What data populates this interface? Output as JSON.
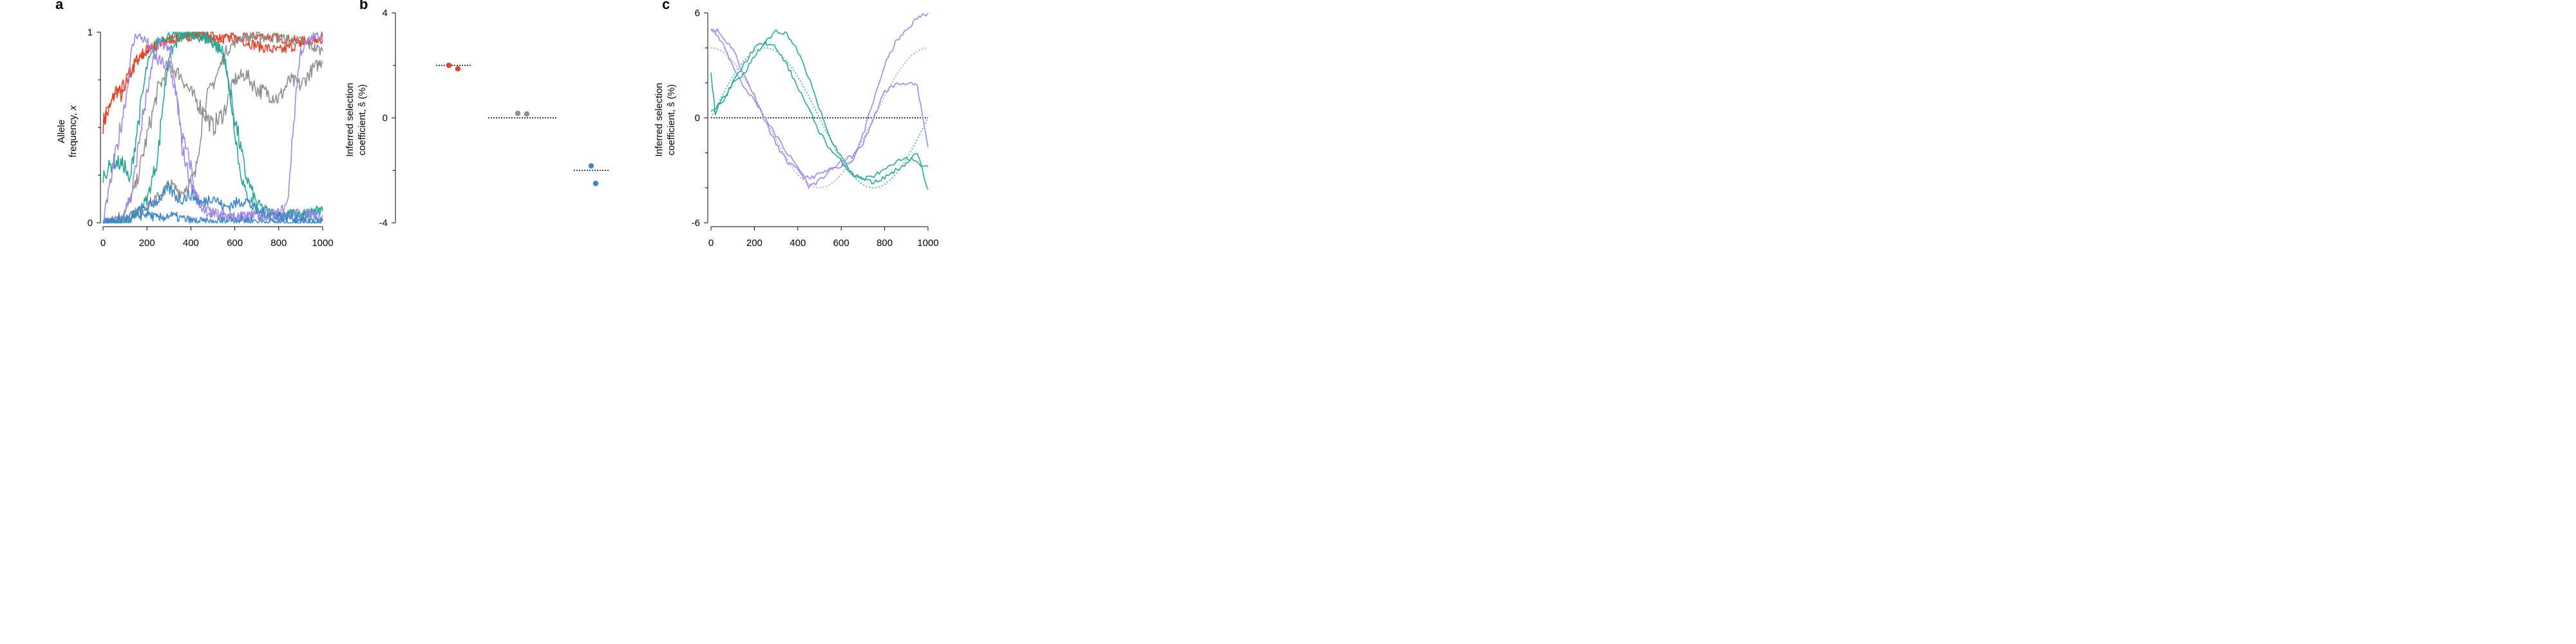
{
  "colors": {
    "red": "#e0442a",
    "gray": "#8f8f8f",
    "teal": "#2aa598",
    "purple": "#a088e6",
    "blue": "#3f86c6",
    "dotted": "#000000"
  },
  "chart_data": [
    {
      "panel": "a",
      "type": "line",
      "title": "",
      "ylabel_lines": [
        "Allele",
        "frequency, x"
      ],
      "xlim": [
        0,
        1000
      ],
      "ylim": [
        0,
        1
      ],
      "x_ticks": [
        0,
        200,
        400,
        600,
        800,
        1000
      ],
      "y_tick_labels": [
        {
          "value": 0,
          "label": "0"
        },
        {
          "value": 1,
          "label": "1"
        }
      ],
      "y_minor_ticks": [
        0.25,
        0.5,
        0.75
      ],
      "series": [
        {
          "color": "red",
          "x": [
            0,
            30,
            60,
            90,
            120,
            150,
            200,
            250,
            300,
            350,
            400,
            450,
            500,
            600,
            700,
            800,
            900,
            1000
          ],
          "y": [
            0.52,
            0.6,
            0.7,
            0.66,
            0.77,
            0.85,
            0.91,
            0.94,
            0.96,
            0.97,
            0.98,
            0.98,
            0.97,
            0.96,
            0.98,
            0.97,
            0.95,
            0.98
          ]
        },
        {
          "color": "red",
          "x": [
            0,
            40,
            80,
            120,
            160,
            200,
            250,
            300,
            400,
            500,
            600,
            700,
            800,
            900,
            1000
          ],
          "y": [
            0.5,
            0.65,
            0.68,
            0.78,
            0.85,
            0.9,
            0.94,
            0.96,
            0.99,
            0.98,
            0.97,
            0.93,
            0.9,
            0.94,
            0.96
          ]
        },
        {
          "color": "gray",
          "x": [
            0,
            100,
            150,
            200,
            250,
            300,
            350,
            400,
            450,
            500,
            550,
            600,
            650,
            700,
            750,
            800,
            850,
            900,
            950,
            1000
          ],
          "y": [
            0.0,
            0.05,
            0.2,
            0.45,
            0.7,
            0.82,
            0.78,
            0.68,
            0.6,
            0.5,
            0.58,
            0.75,
            0.78,
            0.7,
            0.68,
            0.65,
            0.75,
            0.72,
            0.8,
            0.85
          ]
        },
        {
          "color": "gray",
          "x": [
            0,
            60,
            120,
            180,
            240,
            300,
            360,
            420,
            460,
            520,
            560,
            620,
            700,
            800,
            900,
            1000
          ],
          "y": [
            0.0,
            0.0,
            0.03,
            0.08,
            0.12,
            0.2,
            0.16,
            0.25,
            0.62,
            0.78,
            0.9,
            0.97,
            0.98,
            0.97,
            0.95,
            0.9
          ]
        },
        {
          "color": "teal",
          "x": [
            0,
            50,
            100,
            120,
            150,
            200,
            250,
            300,
            350,
            400,
            450,
            500,
            550,
            600,
            650,
            700,
            750,
            800,
            850,
            900,
            950,
            1000
          ],
          "y": [
            0.25,
            0.32,
            0.3,
            0.2,
            0.45,
            0.82,
            0.96,
            0.98,
            0.99,
            0.98,
            0.97,
            0.94,
            0.88,
            0.55,
            0.25,
            0.1,
            0.06,
            0.04,
            0.05,
            0.04,
            0.05,
            0.06
          ]
        },
        {
          "color": "teal",
          "x": [
            0,
            100,
            150,
            200,
            250,
            270,
            300,
            350,
            400,
            450,
            500,
            550,
            600,
            620,
            650,
            700,
            750,
            800,
            900,
            1000
          ],
          "y": [
            0.0,
            0.0,
            0.05,
            0.12,
            0.35,
            0.6,
            0.88,
            0.97,
            0.99,
            0.98,
            0.96,
            0.9,
            0.5,
            0.3,
            0.15,
            0.08,
            0.04,
            0.03,
            0.05,
            0.07
          ]
        },
        {
          "color": "purple",
          "x": [
            0,
            40,
            80,
            110,
            130,
            150,
            200,
            250,
            300,
            330,
            360,
            400,
            420,
            450,
            500,
            600,
            700,
            800,
            840,
            860,
            880,
            900,
            950,
            1000
          ],
          "y": [
            0.0,
            0.25,
            0.5,
            0.7,
            0.9,
            0.99,
            0.95,
            0.85,
            0.82,
            0.7,
            0.45,
            0.3,
            0.15,
            0.08,
            0.05,
            0.03,
            0.04,
            0.05,
            0.1,
            0.4,
            0.7,
            0.9,
            0.97,
            0.99
          ]
        },
        {
          "color": "purple",
          "x": [
            0,
            80,
            130,
            180,
            230,
            260,
            300,
            330,
            360,
            400,
            450,
            500,
            600,
            700,
            800,
            900,
            1000
          ],
          "y": [
            0.0,
            0.02,
            0.15,
            0.55,
            0.85,
            0.95,
            0.92,
            0.7,
            0.4,
            0.2,
            0.08,
            0.04,
            0.03,
            0.04,
            0.03,
            0.05,
            0.04
          ]
        },
        {
          "color": "blue",
          "x": [
            0,
            100,
            200,
            250,
            300,
            350,
            400,
            450,
            500,
            550,
            600,
            650,
            700,
            800,
            900,
            1000
          ],
          "y": [
            0.0,
            0.02,
            0.08,
            0.12,
            0.18,
            0.12,
            0.15,
            0.1,
            0.14,
            0.08,
            0.1,
            0.12,
            0.06,
            0.04,
            0.02,
            0.01
          ]
        },
        {
          "color": "blue",
          "x": [
            0,
            100,
            200,
            250,
            300,
            400,
            500,
            600,
            700,
            800,
            900,
            1000
          ],
          "y": [
            0.0,
            0.01,
            0.05,
            0.02,
            0.04,
            0.01,
            0.0,
            0.02,
            0.01,
            0.0,
            0.0,
            0.01
          ]
        }
      ]
    },
    {
      "panel": "b",
      "type": "scatter",
      "title": "",
      "ylabel_lines": [
        "Inferred selection",
        "coefficient, ŝ (%)"
      ],
      "ylim": [
        -4,
        4
      ],
      "y_tick_labels": [
        {
          "value": 4,
          "label": "4"
        },
        {
          "value": 0,
          "label": "0"
        },
        {
          "value": -4,
          "label": "-4"
        }
      ],
      "y_minor_ticks": [
        2,
        -2
      ],
      "true_values": [
        {
          "group": 1,
          "value": 2,
          "color": "dotted"
        },
        {
          "group": 2,
          "value": 0,
          "color": "dotted"
        },
        {
          "group": 3,
          "value": -2,
          "color": "dotted"
        }
      ],
      "points": [
        {
          "group": 1,
          "offset": -1,
          "value": 2.0,
          "color": "red"
        },
        {
          "group": 1,
          "offset": 1,
          "value": 1.87,
          "color": "red"
        },
        {
          "group": 2,
          "offset": -1,
          "value": 0.17,
          "color": "gray"
        },
        {
          "group": 2,
          "offset": 1,
          "value": 0.15,
          "color": "gray"
        },
        {
          "group": 3,
          "offset": 0,
          "value": -1.83,
          "color": "blue"
        },
        {
          "group": 3,
          "offset": 1,
          "value": -2.5,
          "color": "blue"
        }
      ]
    },
    {
      "panel": "c",
      "type": "line",
      "title": "",
      "ylabel_lines": [
        "Inferred selection",
        "coefficient, ŝ (%)"
      ],
      "xlim": [
        0,
        1000
      ],
      "ylim": [
        -6,
        6
      ],
      "x_ticks": [
        0,
        200,
        400,
        600,
        800,
        1000
      ],
      "y_tick_labels": [
        {
          "value": 6,
          "label": "6"
        },
        {
          "value": 0,
          "label": "0"
        },
        {
          "value": -6,
          "label": "-6"
        }
      ],
      "y_minor_ticks": [
        4,
        2,
        -2,
        -4
      ],
      "zero_line": 0,
      "true_curves": [
        {
          "color": "purple",
          "amplitude": 4,
          "phase_shift": 0
        },
        {
          "color": "teal",
          "amplitude": 4,
          "phase_shift": 250
        }
      ],
      "series": [
        {
          "color": "purple",
          "x": [
            0,
            30,
            60,
            100,
            150,
            200,
            250,
            300,
            350,
            400,
            450,
            500,
            550,
            600,
            650,
            700,
            750,
            800,
            850,
            900,
            950,
            1000
          ],
          "y": [
            5.1,
            5.0,
            4.5,
            4.0,
            2.5,
            1.3,
            -0.2,
            -1.5,
            -2.5,
            -3.0,
            -3.5,
            -3.2,
            -3.0,
            -2.7,
            -2.5,
            -1.0,
            1.0,
            3.0,
            4.3,
            5.0,
            5.7,
            6.0
          ]
        },
        {
          "color": "purple",
          "x": [
            0,
            50,
            100,
            150,
            200,
            250,
            300,
            350,
            400,
            450,
            500,
            550,
            600,
            650,
            700,
            750,
            800,
            850,
            900,
            950,
            1000
          ],
          "y": [
            5.2,
            4.3,
            3.0,
            1.8,
            1.0,
            0.0,
            -1.0,
            -2.0,
            -2.8,
            -3.9,
            -3.6,
            -3.0,
            -2.5,
            -2.2,
            -1.5,
            0.0,
            1.5,
            1.9,
            2.0,
            1.8,
            -1.7
          ]
        },
        {
          "color": "teal",
          "x": [
            0,
            20,
            50,
            100,
            150,
            200,
            250,
            300,
            350,
            400,
            450,
            500,
            550,
            600,
            650,
            700,
            750,
            800,
            850,
            900,
            950,
            1000
          ],
          "y": [
            2.5,
            0.3,
            1.0,
            2.0,
            2.5,
            3.5,
            4.3,
            5.0,
            4.8,
            3.8,
            2.3,
            0.5,
            -1.2,
            -2.2,
            -3.2,
            -3.5,
            -3.7,
            -3.4,
            -3.0,
            -2.6,
            -2.0,
            -4.1
          ]
        },
        {
          "color": "teal",
          "x": [
            0,
            50,
            100,
            150,
            200,
            250,
            300,
            350,
            400,
            450,
            500,
            550,
            600,
            650,
            700,
            750,
            800,
            850,
            900,
            950,
            1000
          ],
          "y": [
            0.5,
            0.8,
            2.0,
            3.0,
            4.0,
            4.3,
            4.0,
            3.0,
            1.8,
            0.5,
            -0.8,
            -1.8,
            -2.5,
            -3.2,
            -3.5,
            -3.3,
            -3.0,
            -2.6,
            -2.2,
            -2.6,
            -2.8
          ]
        }
      ]
    }
  ]
}
